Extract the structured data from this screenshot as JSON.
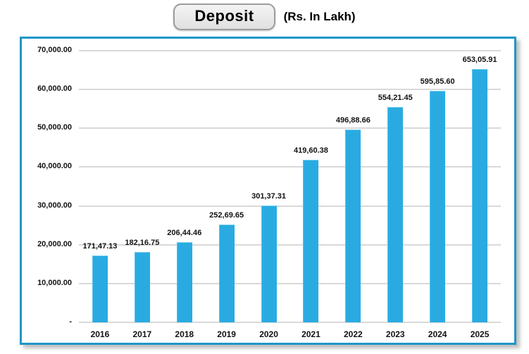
{
  "header": {
    "title": "Deposit",
    "unit": "(Rs. In Lakh)"
  },
  "colors": {
    "bar": "#29ABE2",
    "bar_edge_light": "#7ED3F2",
    "box_border": "#1E96C8",
    "gridline": "#D9D9D9",
    "text": "#111111",
    "pill_fill": "#E9E9E9",
    "pill_border": "#9D9D9D"
  },
  "chart_data": {
    "type": "bar",
    "title": "Deposit",
    "subtitle": "(Rs. In Lakh)",
    "categories": [
      "2016",
      "2017",
      "2018",
      "2019",
      "2020",
      "2021",
      "2022",
      "2023",
      "2024",
      "2025"
    ],
    "values": [
      17147.13,
      18216.75,
      20644.46,
      25269.65,
      30137.31,
      41960.38,
      49688.66,
      55421.45,
      59585.6,
      65305.91
    ],
    "value_labels": [
      "171,47.13",
      "182,16.75",
      "206,44.46",
      "252,69.65",
      "301,37.31",
      "419,60.38",
      "496,88.66",
      "554,21.45",
      "595,85.60",
      "653,05.91"
    ],
    "xlabel": "",
    "ylabel": "",
    "ylim": [
      0,
      70000
    ],
    "ytick_step": 10000,
    "ytick_labels": [
      "-",
      "10,000.00",
      "20,000.00",
      "30,000.00",
      "40,000.00",
      "50,000.00",
      "60,000.00",
      "70,000.00"
    ],
    "grid": true,
    "legend": false,
    "series_color": "#29ABE2"
  }
}
